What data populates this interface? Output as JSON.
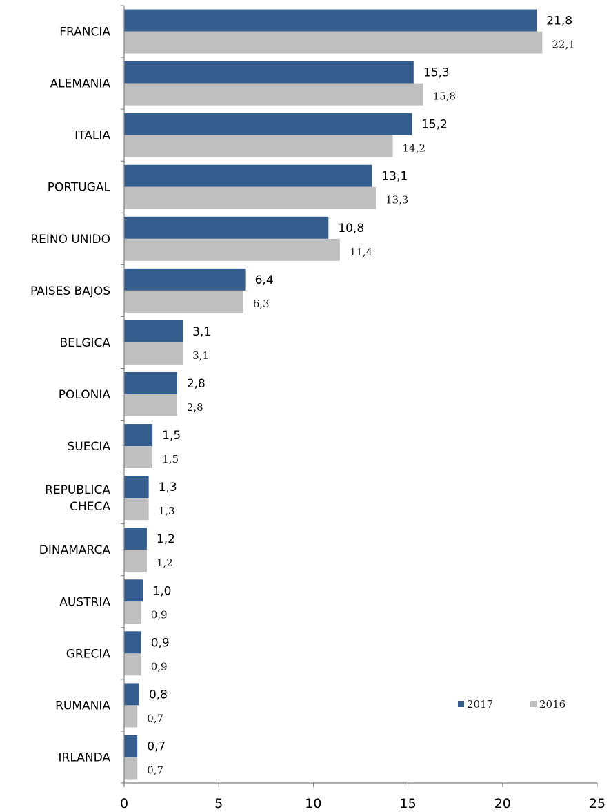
{
  "chart_data": {
    "type": "bar",
    "orientation": "horizontal",
    "categories": [
      [
        "FRANCIA"
      ],
      [
        "ALEMANIA"
      ],
      [
        "ITALIA"
      ],
      [
        "PORTUGAL"
      ],
      [
        "REINO UNIDO"
      ],
      [
        "PAISES BAJOS"
      ],
      [
        "BELGICA"
      ],
      [
        "POLONIA"
      ],
      [
        "SUECIA"
      ],
      [
        "REPUBLICA",
        "CHECA"
      ],
      [
        "DINAMARCA"
      ],
      [
        "AUSTRIA"
      ],
      [
        "GRECIA"
      ],
      [
        "RUMANIA"
      ],
      [
        "IRLANDA"
      ]
    ],
    "series": [
      {
        "name": "2017",
        "color": "#355E8F",
        "values": [
          21.8,
          15.3,
          15.2,
          13.1,
          10.8,
          6.4,
          3.1,
          2.8,
          1.5,
          1.3,
          1.2,
          1.0,
          0.9,
          0.8,
          0.7
        ],
        "labels": [
          "21,8",
          "15,3",
          "15,2",
          "13,1",
          "10,8",
          "6,4",
          "3,1",
          "2,8",
          "1,5",
          "1,3",
          "1,2",
          "1,0",
          "0,9",
          "0,8",
          "0,7"
        ]
      },
      {
        "name": "2016",
        "color": "#BFBFBF",
        "values": [
          22.1,
          15.8,
          14.2,
          13.3,
          11.4,
          6.3,
          3.1,
          2.8,
          1.5,
          1.3,
          1.2,
          0.9,
          0.9,
          0.7,
          0.7
        ],
        "labels": [
          "22,1",
          "15,8",
          "14,2",
          "13,3",
          "11,4",
          "6,3",
          "3,1",
          "2,8",
          "1,5",
          "1,3",
          "1,2",
          "0,9",
          "0,9",
          "0,7",
          "0,7"
        ]
      }
    ],
    "xlim": [
      0,
      25
    ],
    "xticks": [
      0,
      5,
      10,
      15,
      20,
      25
    ],
    "grid": false,
    "legend_position": "bottom-right"
  }
}
